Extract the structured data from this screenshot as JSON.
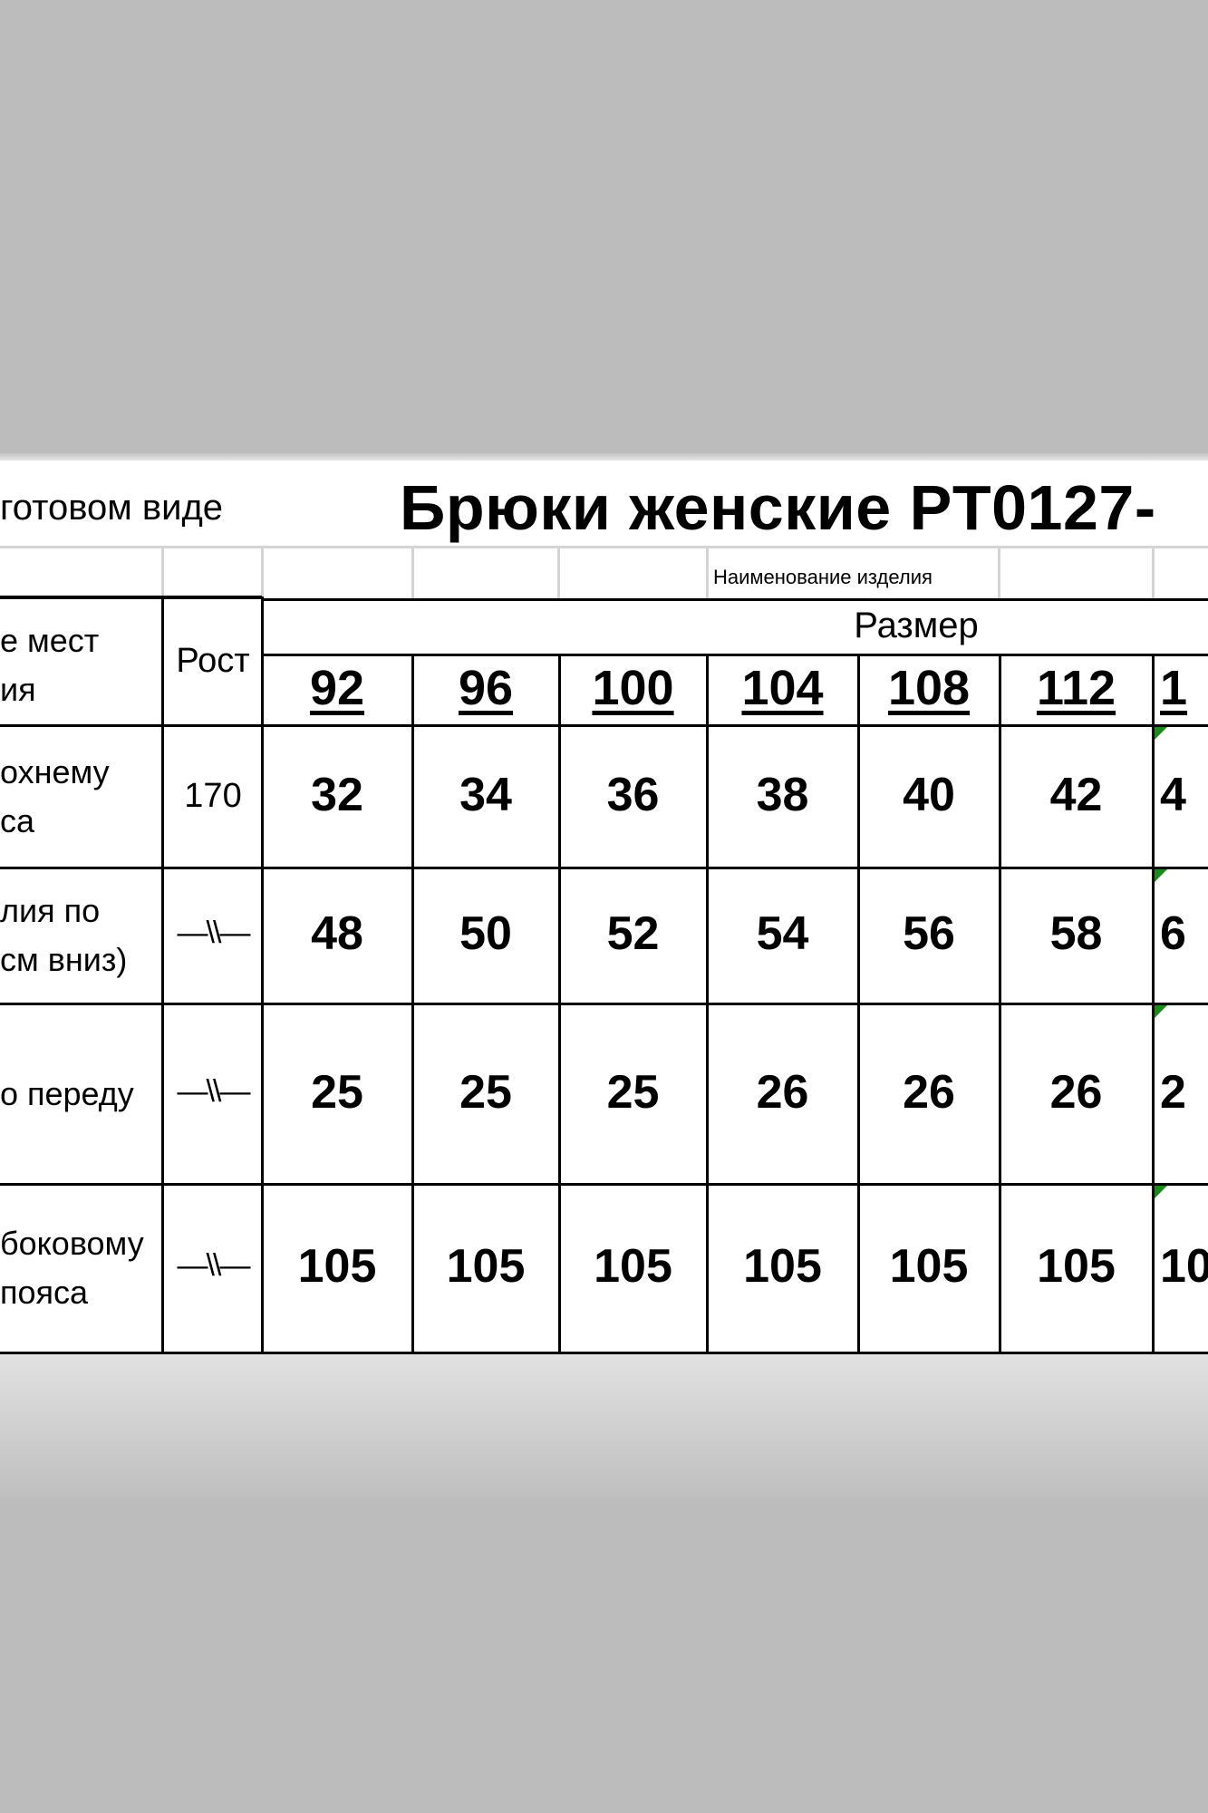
{
  "header": {
    "subtitle_fragment": "готовом виде",
    "title": "Брюки женские PT0127-",
    "product_name_label": "Наименование изделия"
  },
  "table": {
    "col_label_header": [
      "е мест",
      "ия"
    ],
    "col_height_header": "Рост",
    "size_group_header": "Размер",
    "sizes": [
      "92",
      "96",
      "100",
      "104",
      "108",
      "112",
      "1"
    ],
    "rows": [
      {
        "label": [
          "охнему",
          "са"
        ],
        "height": "170",
        "values": [
          "32",
          "34",
          "36",
          "38",
          "40",
          "42",
          "4"
        ]
      },
      {
        "label": [
          "лия по",
          "см вниз)"
        ],
        "height": "—\\\\—",
        "values": [
          "48",
          "50",
          "52",
          "54",
          "56",
          "58",
          "6"
        ]
      },
      {
        "label": [
          "о переду"
        ],
        "height": "—\\\\—",
        "values": [
          "25",
          "25",
          "25",
          "26",
          "26",
          "26",
          "2"
        ]
      },
      {
        "label": [
          "боковому",
          "пояса"
        ],
        "height": "—\\\\—",
        "values": [
          "105",
          "105",
          "105",
          "105",
          "105",
          "105",
          "10"
        ]
      }
    ]
  },
  "colors": {
    "background": "#bbbcbb",
    "grid": "#000000",
    "comment_marker": "#1a8a1a"
  }
}
